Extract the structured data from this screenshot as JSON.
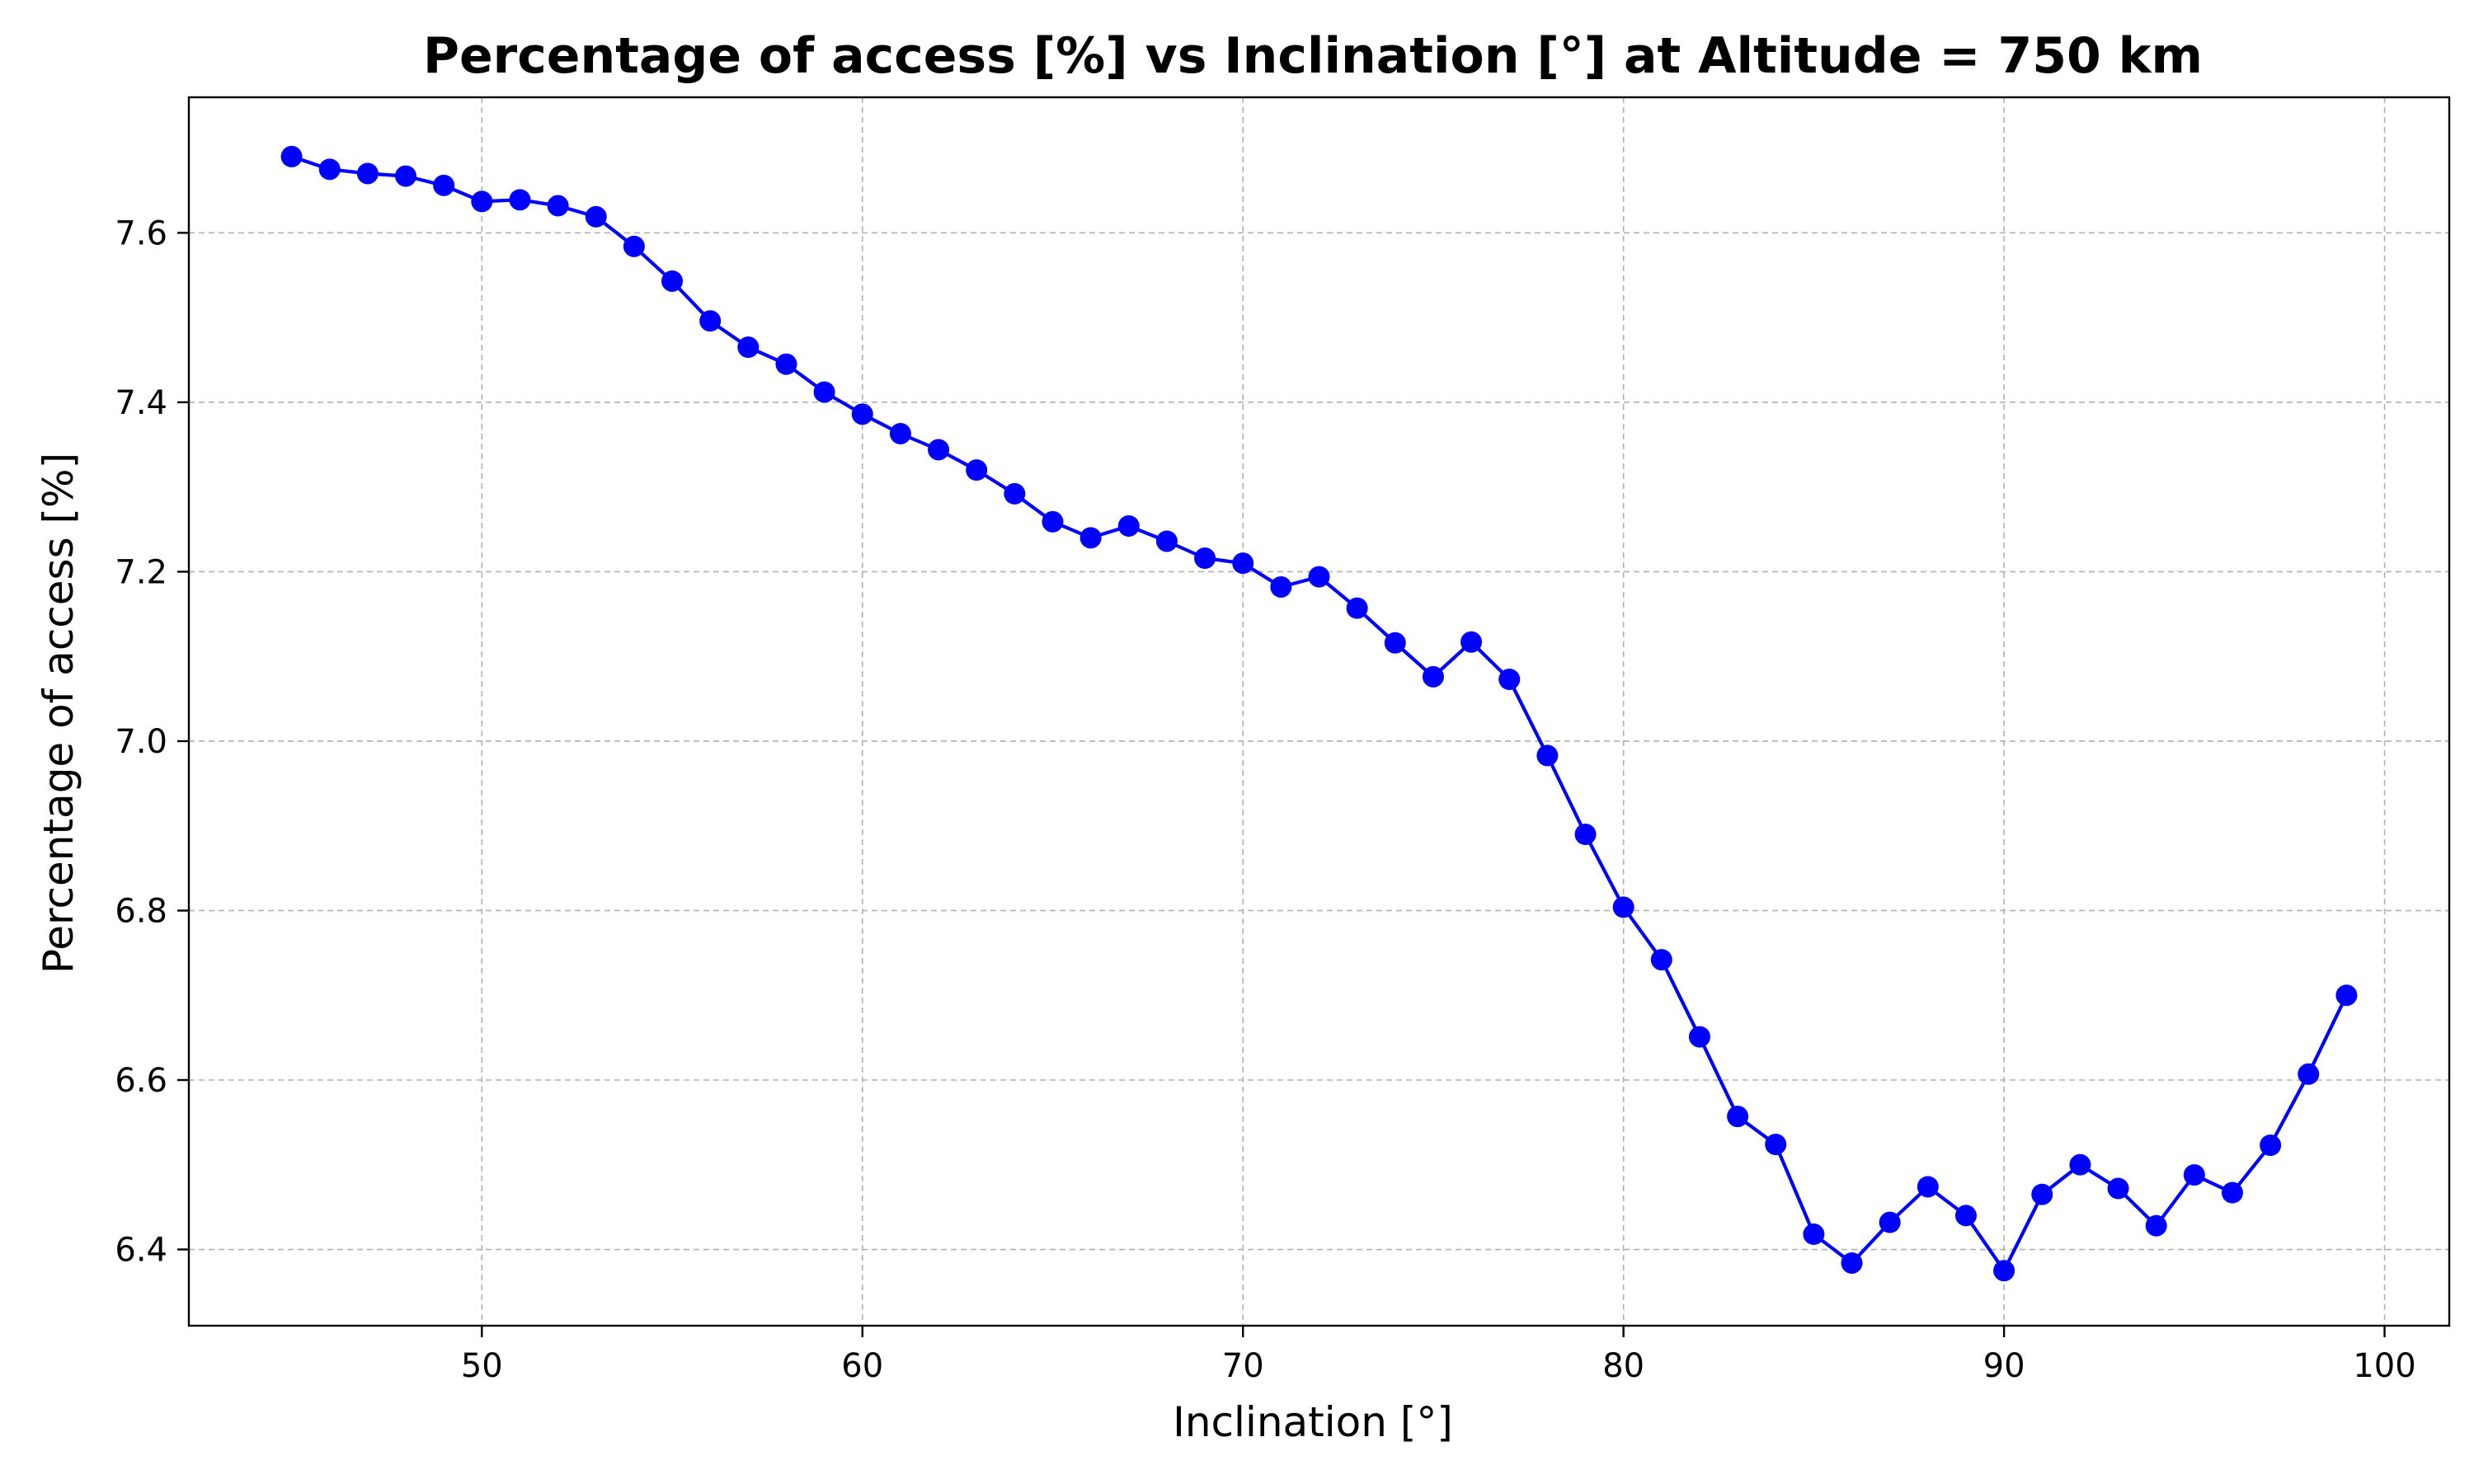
{
  "chart_data": {
    "type": "line",
    "title": "Percentage of access [%] vs Inclination [°] at Altitude = 750 km",
    "xlabel": "Inclination [°]",
    "ylabel": "Percentage of access [%]",
    "xlim": [
      42.3,
      101.7
    ],
    "ylim": [
      6.31,
      7.76
    ],
    "xticks": [
      50,
      60,
      70,
      80,
      90,
      100
    ],
    "xtick_labels": [
      "50",
      "60",
      "70",
      "80",
      "90",
      "100"
    ],
    "yticks": [
      6.4,
      6.6,
      6.8,
      7.0,
      7.2,
      7.4,
      7.6
    ],
    "ytick_labels": [
      "6.4",
      "6.6",
      "6.8",
      "7.0",
      "7.2",
      "7.4",
      "7.6"
    ],
    "grid": true,
    "color": "#0000ff",
    "marker": "circle",
    "x": [
      45,
      46,
      47,
      48,
      49,
      50,
      51,
      52,
      53,
      54,
      55,
      56,
      57,
      58,
      59,
      60,
      61,
      62,
      63,
      64,
      65,
      66,
      67,
      68,
      69,
      70,
      71,
      72,
      73,
      74,
      75,
      76,
      77,
      78,
      79,
      80,
      81,
      82,
      83,
      84,
      85,
      86,
      87,
      88,
      89,
      90,
      91,
      92,
      93,
      94,
      95,
      96,
      97,
      98,
      99
    ],
    "y": [
      7.69,
      7.675,
      7.67,
      7.667,
      7.656,
      7.637,
      7.639,
      7.632,
      7.619,
      7.584,
      7.543,
      7.496,
      7.465,
      7.445,
      7.412,
      7.386,
      7.363,
      7.344,
      7.32,
      7.292,
      7.259,
      7.24,
      7.254,
      7.236,
      7.216,
      7.21,
      7.182,
      7.194,
      7.157,
      7.116,
      7.076,
      7.117,
      7.073,
      6.983,
      6.89,
      6.804,
      6.742,
      6.651,
      6.557,
      6.524,
      6.418,
      6.384,
      6.432,
      6.474,
      6.44,
      6.375,
      6.465,
      6.5,
      6.472,
      6.428,
      6.488,
      6.467,
      6.523,
      6.607,
      6.7
    ]
  }
}
